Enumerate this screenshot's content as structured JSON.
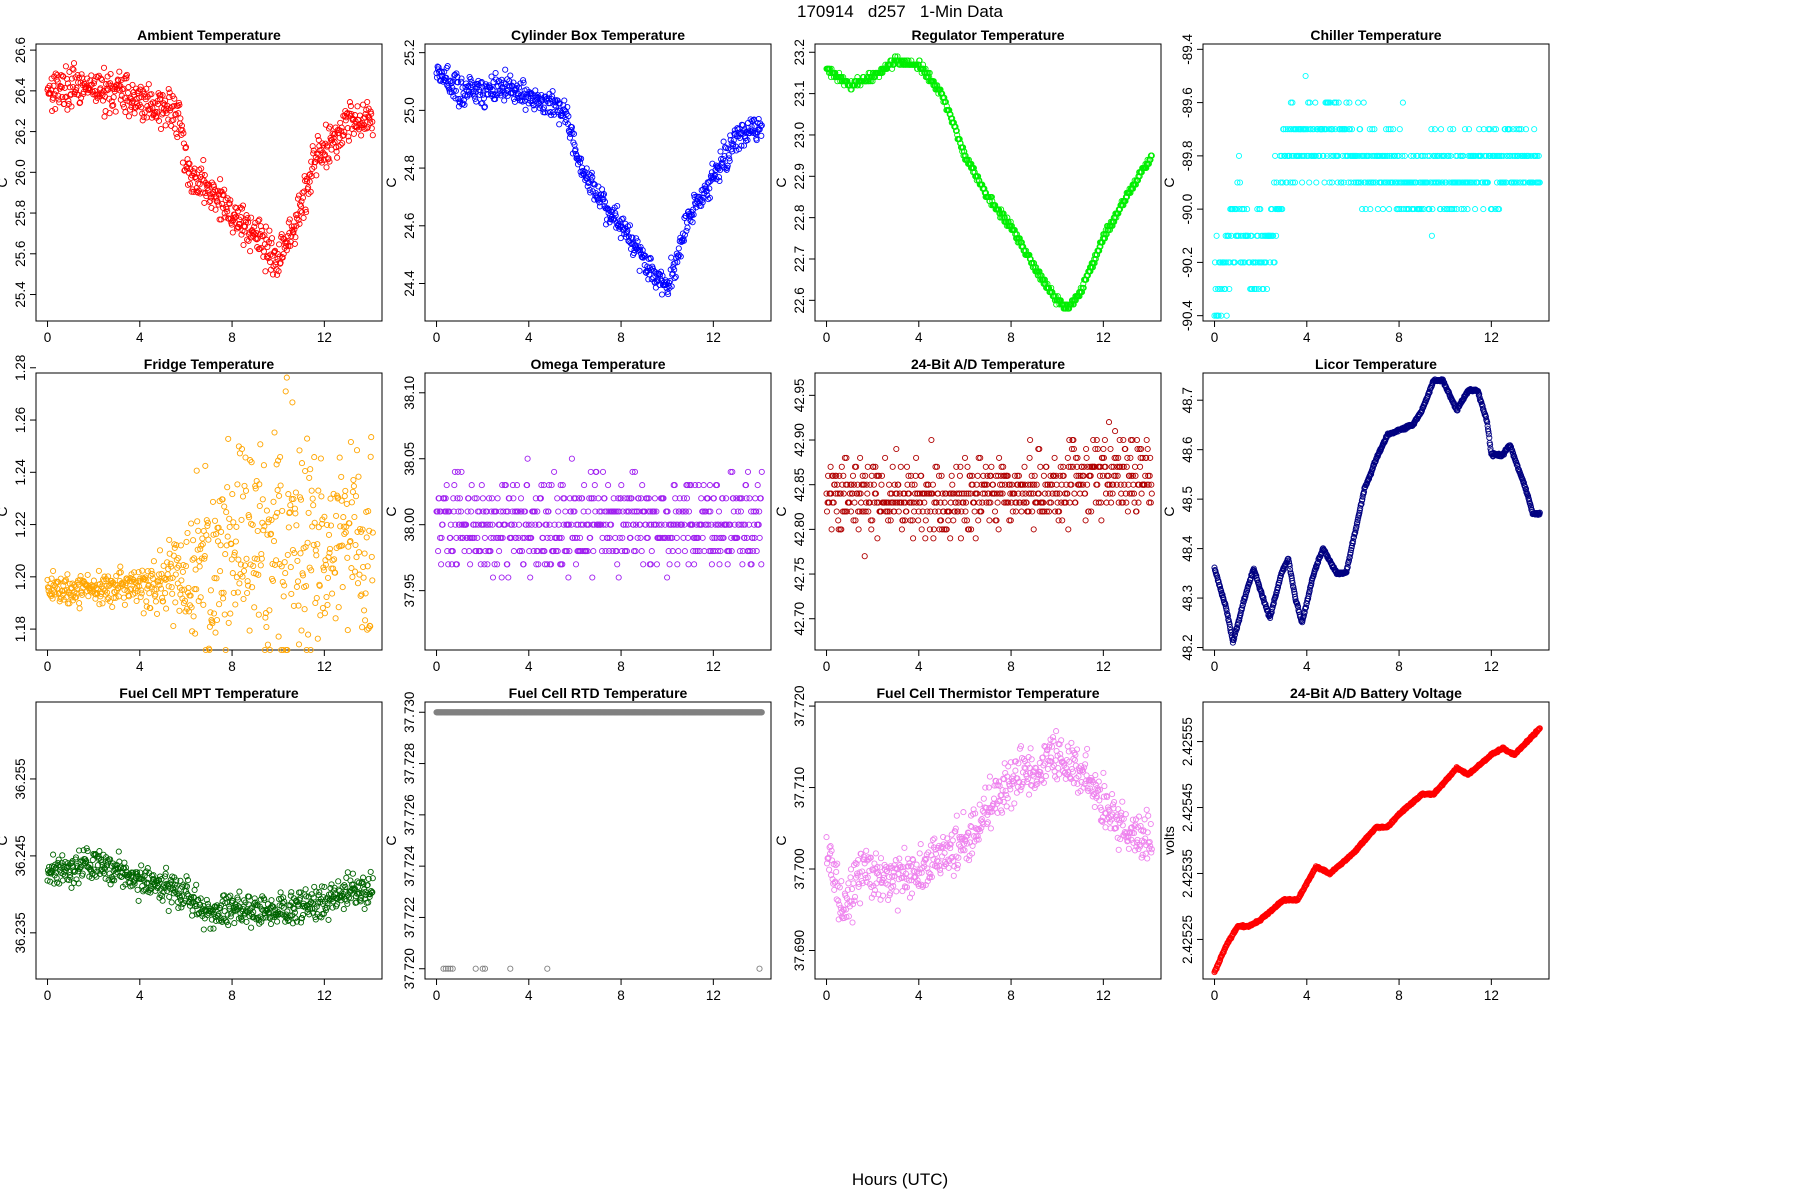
{
  "title": "170914   d257   1-Min Data",
  "xlabel": "Hours (UTC)",
  "chart_data": [
    {
      "id": "ambient",
      "type": "scatter",
      "title": "Ambient Temperature",
      "ylabel": "C",
      "color": "#ff0000",
      "xlim": [
        -0.5,
        14.5
      ],
      "ylim": [
        25.27,
        26.63
      ],
      "xticks": [
        "0",
        "4",
        "8",
        "12"
      ],
      "yticks": [
        "25.4",
        "25.6",
        "25.8",
        "26.0",
        "26.2",
        "26.4",
        "26.6"
      ],
      "style": "noisy",
      "ystep": 0,
      "noise": 0.07,
      "trend": [
        [
          0,
          26.42
        ],
        [
          3,
          26.4
        ],
        [
          5.7,
          26.28
        ],
        [
          6,
          26.02
        ],
        [
          8,
          25.8
        ],
        [
          9,
          25.7
        ],
        [
          10,
          25.55
        ],
        [
          10.8,
          25.75
        ],
        [
          11.5,
          26.05
        ],
        [
          12.3,
          26.15
        ],
        [
          13,
          26.25
        ],
        [
          14.1,
          26.28
        ]
      ]
    },
    {
      "id": "cylinder",
      "type": "scatter",
      "title": "Cylinder Box Temperature",
      "ylabel": "C",
      "color": "#0000ff",
      "xlim": [
        -0.5,
        14.5
      ],
      "ylim": [
        24.27,
        25.23
      ],
      "xticks": [
        "0",
        "4",
        "8",
        "12"
      ],
      "yticks": [
        "24.4",
        "24.6",
        "24.8",
        "25.0",
        "25.2"
      ],
      "style": "noisy",
      "ystep": 0,
      "noise": 0.035,
      "trend": [
        [
          0,
          25.15
        ],
        [
          1,
          25.06
        ],
        [
          3,
          25.08
        ],
        [
          5,
          25.02
        ],
        [
          5.7,
          24.98
        ],
        [
          6.2,
          24.8
        ],
        [
          8,
          24.6
        ],
        [
          9.5,
          24.42
        ],
        [
          10,
          24.38
        ],
        [
          11,
          24.65
        ],
        [
          12,
          24.77
        ],
        [
          13,
          24.9
        ],
        [
          14.1,
          24.95
        ]
      ]
    },
    {
      "id": "regulator",
      "type": "scatter",
      "title": "Regulator Temperature",
      "ylabel": "C",
      "color": "#00ee00",
      "xlim": [
        -0.5,
        14.5
      ],
      "ylim": [
        22.55,
        23.22
      ],
      "xticks": [
        "0",
        "4",
        "8",
        "12"
      ],
      "yticks": [
        "22.6",
        "22.7",
        "22.8",
        "22.9",
        "23.0",
        "23.1",
        "23.2"
      ],
      "style": "line",
      "ystep": 0.01,
      "noise": 0.006,
      "trend": [
        [
          0,
          23.16
        ],
        [
          1,
          23.12
        ],
        [
          2,
          23.14
        ],
        [
          3,
          23.18
        ],
        [
          4,
          23.17
        ],
        [
          5,
          23.1
        ],
        [
          6,
          22.95
        ],
        [
          7,
          22.85
        ],
        [
          8,
          22.78
        ],
        [
          9,
          22.68
        ],
        [
          10,
          22.6
        ],
        [
          10.5,
          22.58
        ],
        [
          11,
          22.62
        ],
        [
          12,
          22.75
        ],
        [
          13,
          22.85
        ],
        [
          14.1,
          22.95
        ]
      ]
    },
    {
      "id": "chiller",
      "type": "scatter",
      "title": "Chiller Temperature",
      "ylabel": "C",
      "color": "#00ffff",
      "xlim": [
        -0.5,
        14.5
      ],
      "ylim": [
        -90.42,
        -89.38
      ],
      "xticks": [
        "0",
        "4",
        "8",
        "12"
      ],
      "yticks": [
        "-90.4",
        "-90.2",
        "-90.0",
        "-89.8",
        "-89.6",
        "-89.4"
      ],
      "style": "quant",
      "ystep": 0.1,
      "noise": 0.12,
      "trend": [
        [
          0,
          -90.35
        ],
        [
          1,
          -90.05
        ],
        [
          2,
          -90.2
        ],
        [
          2.5,
          -90.05
        ],
        [
          3.2,
          -89.75
        ],
        [
          5,
          -89.72
        ],
        [
          7,
          -89.85
        ],
        [
          9,
          -89.9
        ],
        [
          11,
          -89.85
        ],
        [
          14.1,
          -89.82
        ]
      ]
    },
    {
      "id": "fridge",
      "type": "scatter",
      "title": "Fridge Temperature",
      "ylabel": "C",
      "color": "#ffa500",
      "xlim": [
        -0.5,
        14.5
      ],
      "ylim": [
        1.172,
        1.278
      ],
      "xticks": [
        "0",
        "4",
        "8",
        "12"
      ],
      "yticks": [
        "1.18",
        "1.20",
        "1.22",
        "1.24",
        "1.26",
        "1.28"
      ],
      "style": "spread",
      "ystep": 0,
      "noise": 0.006,
      "trend": [
        [
          0,
          1.196
        ],
        [
          4,
          1.196
        ],
        [
          6,
          1.2
        ],
        [
          8,
          1.21
        ],
        [
          10,
          1.215
        ],
        [
          12,
          1.21
        ],
        [
          14.1,
          1.21
        ]
      ],
      "spread": [
        [
          0,
          0.004
        ],
        [
          4,
          0.005
        ],
        [
          6,
          0.015
        ],
        [
          8,
          0.03
        ],
        [
          10,
          0.035
        ],
        [
          12,
          0.03
        ],
        [
          14.1,
          0.025
        ]
      ]
    },
    {
      "id": "omega",
      "type": "scatter",
      "title": "Omega Temperature",
      "ylabel": "C",
      "color": "#a020f0",
      "xlim": [
        -0.5,
        14.5
      ],
      "ylim": [
        37.905,
        38.115
      ],
      "xticks": [
        "0",
        "4",
        "8",
        "12"
      ],
      "yticks": [
        "37.95",
        "38.00",
        "38.05",
        "38.10"
      ],
      "style": "quant",
      "ystep": 0.01,
      "noise": 0.025,
      "trend": [
        [
          0,
          38.0
        ],
        [
          14.1,
          38.0
        ]
      ]
    },
    {
      "id": "ad24",
      "type": "scatter",
      "title": "24-Bit A/D Temperature",
      "ylabel": "C",
      "color": "#b00000",
      "xlim": [
        -0.5,
        14.5
      ],
      "ylim": [
        42.665,
        42.975
      ],
      "xticks": [
        "0",
        "4",
        "8",
        "12"
      ],
      "yticks": [
        "42.70",
        "42.75",
        "42.80",
        "42.85",
        "42.90",
        "42.95"
      ],
      "style": "quant",
      "ystep": 0.01,
      "noise": 0.03,
      "trend": [
        [
          0,
          42.84
        ],
        [
          4,
          42.83
        ],
        [
          8,
          42.84
        ],
        [
          12,
          42.86
        ],
        [
          14.1,
          42.86
        ]
      ]
    },
    {
      "id": "licor",
      "type": "scatter",
      "title": "Licor Temperature",
      "ylabel": "C",
      "color": "#000080",
      "xlim": [
        -0.5,
        14.5
      ],
      "ylim": [
        48.195,
        48.755
      ],
      "xticks": [
        "0",
        "4",
        "8",
        "12"
      ],
      "yticks": [
        "48.2",
        "48.3",
        "48.4",
        "48.5",
        "48.6",
        "48.7"
      ],
      "style": "line",
      "ystep": 0,
      "noise": 0.002,
      "trend": [
        [
          0,
          48.36
        ],
        [
          0.5,
          48.28
        ],
        [
          0.8,
          48.21
        ],
        [
          1.3,
          48.3
        ],
        [
          1.7,
          48.36
        ],
        [
          2.1,
          48.3
        ],
        [
          2.4,
          48.26
        ],
        [
          2.9,
          48.35
        ],
        [
          3.2,
          48.38
        ],
        [
          3.5,
          48.3
        ],
        [
          3.8,
          48.25
        ],
        [
          4.3,
          48.35
        ],
        [
          4.7,
          48.4
        ],
        [
          5.3,
          48.35
        ],
        [
          5.7,
          48.35
        ],
        [
          6.5,
          48.52
        ],
        [
          7,
          48.58
        ],
        [
          7.5,
          48.63
        ],
        [
          8,
          48.64
        ],
        [
          8.6,
          48.65
        ],
        [
          9,
          48.68
        ],
        [
          9.5,
          48.74
        ],
        [
          9.9,
          48.74
        ],
        [
          10.5,
          48.68
        ],
        [
          11,
          48.72
        ],
        [
          11.4,
          48.72
        ],
        [
          11.8,
          48.66
        ],
        [
          12,
          48.59
        ],
        [
          12.5,
          48.59
        ],
        [
          12.8,
          48.61
        ],
        [
          13.5,
          48.52
        ],
        [
          13.8,
          48.47
        ],
        [
          14.1,
          48.47
        ]
      ]
    },
    {
      "id": "fc_mpt",
      "type": "scatter",
      "title": "Fuel Cell MPT Temperature",
      "ylabel": "C",
      "color": "#006400",
      "xlim": [
        -0.5,
        14.5
      ],
      "ylim": [
        36.229,
        36.265
      ],
      "xticks": [
        "0",
        "4",
        "8",
        "12"
      ],
      "yticks": [
        "36.235",
        "36.245",
        "36.255"
      ],
      "style": "noisy",
      "ystep": 0,
      "noise": 0.0015,
      "trend": [
        [
          0,
          36.243
        ],
        [
          2,
          36.244
        ],
        [
          4,
          36.242
        ],
        [
          6,
          36.24
        ],
        [
          7,
          36.237
        ],
        [
          8,
          36.238
        ],
        [
          10,
          36.238
        ],
        [
          12,
          36.239
        ],
        [
          14.1,
          36.241
        ]
      ]
    },
    {
      "id": "fc_rtd",
      "type": "scatter",
      "title": "Fuel Cell RTD Temperature",
      "ylabel": "C",
      "color": "#808080",
      "xlim": [
        -0.5,
        14.5
      ],
      "ylim": [
        37.7196,
        37.7304
      ],
      "xticks": [
        "0",
        "4",
        "8",
        "12"
      ],
      "yticks": [
        "37.720",
        "37.722",
        "37.724",
        "37.726",
        "37.728",
        "37.730"
      ],
      "style": "flat",
      "ystep": 0,
      "noise": 0,
      "trend": [
        [
          0,
          37.73
        ],
        [
          14.1,
          37.73
        ]
      ],
      "outliers_x": [
        0.3,
        0.4,
        0.5,
        0.6,
        0.7,
        1.7,
        2.0,
        2.1,
        3.2,
        4.8,
        14.0
      ],
      "outliers_y": 37.72
    },
    {
      "id": "fc_therm",
      "type": "scatter",
      "title": "Fuel Cell Thermistor Temperature",
      "ylabel": "C",
      "color": "#ee82ee",
      "xlim": [
        -0.5,
        14.5
      ],
      "ylim": [
        37.6865,
        37.7205
      ],
      "xticks": [
        "0",
        "4",
        "8",
        "12"
      ],
      "yticks": [
        "37.690",
        "37.700",
        "37.710",
        "37.720"
      ],
      "style": "noisy",
      "ystep": 0,
      "noise": 0.0022,
      "trend": [
        [
          0,
          37.702
        ],
        [
          0.7,
          37.695
        ],
        [
          1.5,
          37.7
        ],
        [
          2.5,
          37.699
        ],
        [
          3.5,
          37.699
        ],
        [
          4.3,
          37.7
        ],
        [
          5,
          37.702
        ],
        [
          6,
          37.703
        ],
        [
          7,
          37.707
        ],
        [
          8,
          37.711
        ],
        [
          9,
          37.712
        ],
        [
          10,
          37.714
        ],
        [
          11,
          37.712
        ],
        [
          12,
          37.708
        ],
        [
          13,
          37.705
        ],
        [
          14.1,
          37.703
        ]
      ]
    },
    {
      "id": "battery",
      "type": "scatter",
      "title": "24-Bit A/D Battery Voltage",
      "ylabel": "volts",
      "color": "#ff0000",
      "xlim": [
        -0.5,
        14.5
      ],
      "ylim": [
        2.42519,
        2.42561
      ],
      "xticks": [
        "0",
        "4",
        "8",
        "12"
      ],
      "yticks": [
        "2.42525",
        "2.42535",
        "2.42545",
        "2.42555"
      ],
      "style": "line",
      "ystep": 0,
      "noise": 1e-06,
      "trend": [
        [
          0,
          2.4252
        ],
        [
          0.5,
          2.42524
        ],
        [
          1,
          2.42527
        ],
        [
          1.5,
          2.42527
        ],
        [
          2,
          2.42528
        ],
        [
          3,
          2.42531
        ],
        [
          3.6,
          2.42531
        ],
        [
          4.4,
          2.42536
        ],
        [
          5,
          2.42535
        ],
        [
          6,
          2.42538
        ],
        [
          7,
          2.42542
        ],
        [
          7.5,
          2.42542
        ],
        [
          8,
          2.42544
        ],
        [
          9,
          2.42547
        ],
        [
          9.5,
          2.42547
        ],
        [
          10.5,
          2.42551
        ],
        [
          11,
          2.4255
        ],
        [
          12,
          2.42553
        ],
        [
          12.5,
          2.42554
        ],
        [
          13,
          2.42553
        ],
        [
          14.1,
          2.42557
        ]
      ]
    }
  ]
}
